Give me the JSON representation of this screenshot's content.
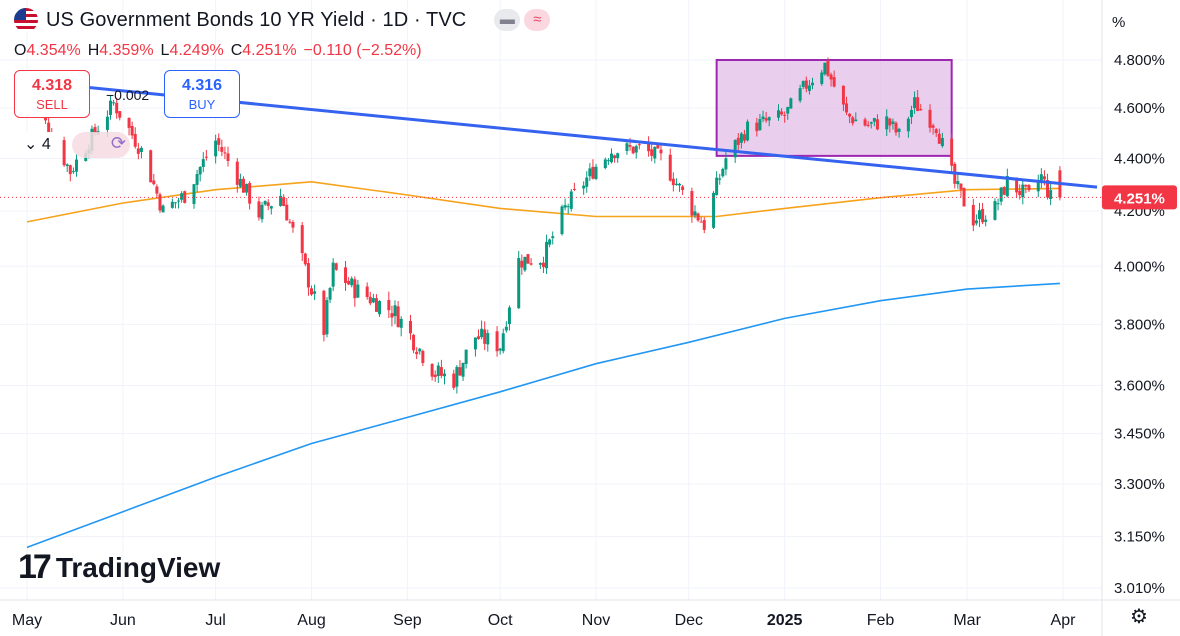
{
  "header": {
    "title": "US Government Bonds 10 YR Yield · 1D · TVC",
    "ohlc": {
      "o_label": "O",
      "o": "4.354%",
      "h_label": "H",
      "h": "4.359%",
      "l_label": "L",
      "l": "4.249%",
      "c_label": "C",
      "c": "4.251%",
      "change": "−0.110 (−2.52%)"
    }
  },
  "trade": {
    "sell_price": "4.318",
    "sell_label": "SELL",
    "buy_price": "4.316",
    "buy_label": "BUY",
    "spread": "−0.002"
  },
  "controls": {
    "quantity": "4",
    "chevron": "chevron-down-icon",
    "sync": "sync-icon"
  },
  "brand": {
    "name": "TradingView"
  },
  "chart_data": {
    "type": "candlestick",
    "y_unit": "%",
    "y_scale": "log",
    "y_ticks": [
      "4.800%",
      "4.600%",
      "4.400%",
      "4.200%",
      "4.000%",
      "3.800%",
      "3.600%",
      "3.450%",
      "3.300%",
      "3.150%",
      "3.010%"
    ],
    "y_tick_values": [
      4.8,
      4.6,
      4.4,
      4.2,
      4.0,
      3.8,
      3.6,
      3.45,
      3.3,
      3.15,
      3.01
    ],
    "x_ticks": [
      "May",
      "Jun",
      "Jul",
      "Aug",
      "Sep",
      "Oct",
      "Nov",
      "Dec",
      "2025",
      "Feb",
      "Mar",
      "Apr"
    ],
    "last_price": "4.251%",
    "last_value": 4.251,
    "colors": {
      "up": "#089981",
      "down": "#f23645",
      "ma_fast": "#f7a21b",
      "ma_slow": "#2196f3",
      "trend": "#3563f0",
      "box": "#9c27b0",
      "box_fill": "#e1bee7"
    },
    "anchors": [
      [
        "2024-05-01",
        4.68
      ],
      [
        "2024-05-15",
        4.35
      ],
      [
        "2024-05-29",
        4.62
      ],
      [
        "2024-06-07",
        4.43
      ],
      [
        "2024-06-14",
        4.2
      ],
      [
        "2024-06-21",
        4.26
      ],
      [
        "2024-07-01",
        4.47
      ],
      [
        "2024-07-15",
        4.19
      ],
      [
        "2024-07-22",
        4.26
      ],
      [
        "2024-08-05",
        3.78
      ],
      [
        "2024-08-08",
        3.99
      ],
      [
        "2024-08-15",
        3.92
      ],
      [
        "2024-08-28",
        3.84
      ],
      [
        "2024-09-10",
        3.64
      ],
      [
        "2024-09-16",
        3.62
      ],
      [
        "2024-09-23",
        3.76
      ],
      [
        "2024-10-01",
        3.73
      ],
      [
        "2024-10-07",
        4.02
      ],
      [
        "2024-10-15",
        4.03
      ],
      [
        "2024-10-22",
        4.21
      ],
      [
        "2024-11-01",
        4.37
      ],
      [
        "2024-11-06",
        4.43
      ],
      [
        "2024-11-15",
        4.44
      ],
      [
        "2024-11-22",
        4.4
      ],
      [
        "2024-12-02",
        4.21
      ],
      [
        "2024-12-06",
        4.15
      ],
      [
        "2024-12-13",
        4.4
      ],
      [
        "2024-12-20",
        4.52
      ],
      [
        "2025-01-01",
        4.57
      ],
      [
        "2025-01-07",
        4.68
      ],
      [
        "2025-01-14",
        4.78
      ],
      [
        "2025-01-21",
        4.57
      ],
      [
        "2025-01-28",
        4.53
      ],
      [
        "2025-02-03",
        4.55
      ],
      [
        "2025-02-07",
        4.49
      ],
      [
        "2025-02-12",
        4.62
      ],
      [
        "2025-02-19",
        4.53
      ],
      [
        "2025-02-25",
        4.3
      ],
      [
        "2025-03-03",
        4.17
      ],
      [
        "2025-03-10",
        4.21
      ],
      [
        "2025-03-14",
        4.31
      ],
      [
        "2025-03-21",
        4.25
      ],
      [
        "2025-03-25",
        4.33
      ],
      [
        "2025-03-28",
        4.25
      ],
      [
        "2025-03-31",
        4.251
      ]
    ],
    "ma_fast_points": [
      [
        "2024-05-01",
        4.16
      ],
      [
        "2024-06-01",
        4.23
      ],
      [
        "2024-07-01",
        4.28
      ],
      [
        "2024-08-01",
        4.31
      ],
      [
        "2024-09-01",
        4.26
      ],
      [
        "2024-10-01",
        4.21
      ],
      [
        "2024-11-01",
        4.18
      ],
      [
        "2024-12-10",
        4.18
      ],
      [
        "2025-01-01",
        4.21
      ],
      [
        "2025-02-01",
        4.25
      ],
      [
        "2025-03-01",
        4.28
      ],
      [
        "2025-03-31",
        4.285
      ]
    ],
    "ma_slow_points": [
      [
        "2024-05-01",
        3.12
      ],
      [
        "2024-06-01",
        3.22
      ],
      [
        "2024-07-01",
        3.32
      ],
      [
        "2024-08-01",
        3.42
      ],
      [
        "2024-09-01",
        3.5
      ],
      [
        "2024-10-01",
        3.58
      ],
      [
        "2024-11-01",
        3.67
      ],
      [
        "2024-12-01",
        3.74
      ],
      [
        "2025-01-01",
        3.82
      ],
      [
        "2025-02-01",
        3.88
      ],
      [
        "2025-03-01",
        3.92
      ],
      [
        "2025-03-31",
        3.94
      ]
    ],
    "trend_line": [
      [
        "2024-05-01",
        4.71
      ],
      [
        "2025-04-12",
        4.29
      ]
    ],
    "box": {
      "x0": "2024-12-10",
      "x1": "2025-02-24",
      "y0": 4.41,
      "y1": 4.8
    }
  }
}
